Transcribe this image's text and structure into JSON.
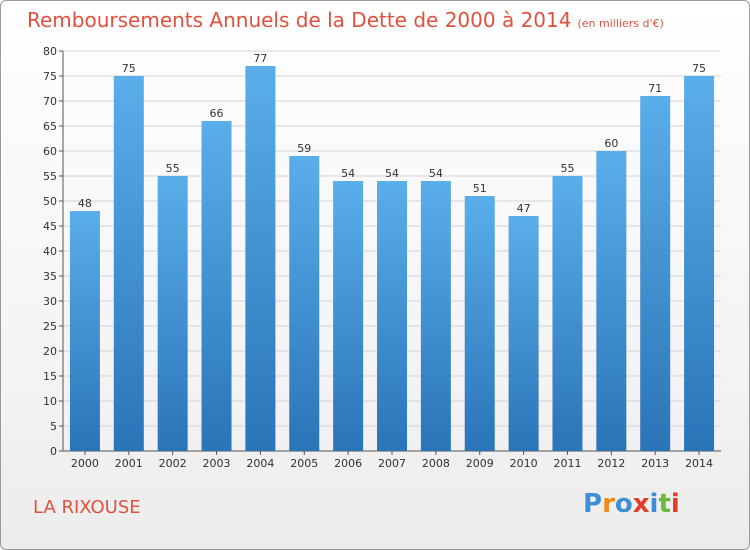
{
  "chart_data": {
    "type": "bar",
    "title": "Remboursements Annuels de la Dette de 2000 à 2014",
    "subtitle": "(en milliers d'€)",
    "categories": [
      "2000",
      "2001",
      "2002",
      "2003",
      "2004",
      "2005",
      "2006",
      "2007",
      "2008",
      "2009",
      "2010",
      "2011",
      "2012",
      "2013",
      "2014"
    ],
    "values": [
      48,
      75,
      55,
      66,
      77,
      59,
      54,
      54,
      54,
      51,
      47,
      55,
      60,
      71,
      75
    ],
    "data_labels": [
      "48",
      "75",
      "55",
      "66",
      "77",
      "59",
      "54",
      "54",
      "54",
      "51",
      "47",
      "55",
      "60",
      "71",
      "75"
    ],
    "ylim": [
      0,
      80
    ],
    "yticks": [
      0,
      5,
      10,
      15,
      20,
      25,
      30,
      35,
      40,
      45,
      50,
      55,
      60,
      65,
      70,
      75,
      80
    ],
    "grid": true,
    "bar_color": "#3f96de"
  },
  "footer": {
    "commune": "LA RIXOUSE",
    "logo_letters": [
      "P",
      "r",
      "o",
      "x",
      "i",
      "t",
      "i"
    ],
    "logo_colors": [
      "#3f8fd8",
      "#f08a1c",
      "#3f8fd8",
      "#e23c2a",
      "#3f8fd8",
      "#6cb83a",
      "#e23c2a"
    ]
  }
}
